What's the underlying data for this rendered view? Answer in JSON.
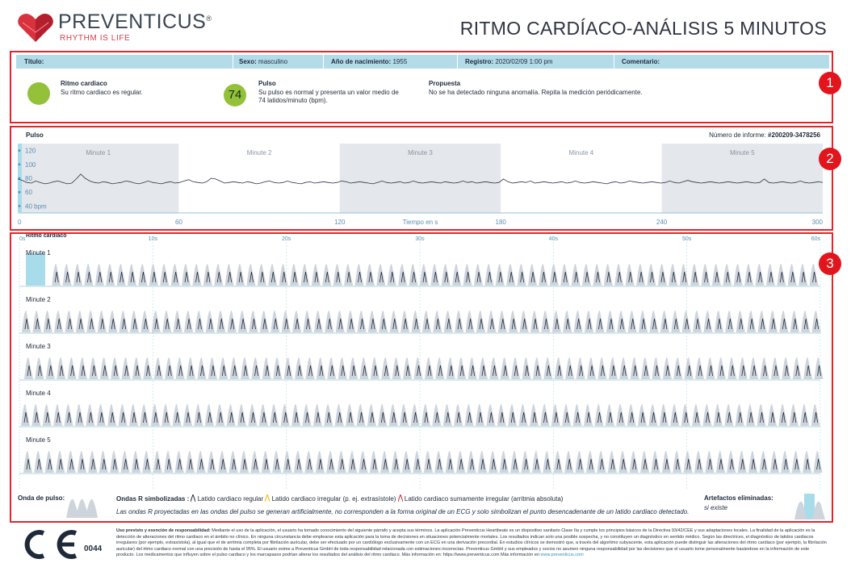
{
  "brand": {
    "name": "PREVENTICUS",
    "registered": "®",
    "slogan": "RHYTHM IS LIFE"
  },
  "page_title": "RITMO CARDÍACO-ANÁLISIS 5 MINUTOS",
  "markers": [
    "1",
    "2",
    "3"
  ],
  "info_bar": {
    "titulo_label": "Título:",
    "sexo_label": "Sexo:",
    "sexo_value": "masculino",
    "nacimiento_label": "Año de nacimiento:",
    "nacimiento_value": "1955",
    "registro_label": "Registro:",
    "registro_value": "2020/02/09 1:00 pm",
    "comentario_label": "Comentario:"
  },
  "summary": {
    "rhythm_title": "Ritmo cardiaco",
    "rhythm_text": "Su ritmo cardiaco es regular.",
    "pulse_value": "74",
    "pulse_title": "Pulso",
    "pulse_text_1": "Su pulso es normal y presenta un valor medio de",
    "pulse_text_2": "74 latidos/minuto (bpm).",
    "proposal_title": "Propuesta",
    "proposal_text": "No se ha detectado ninguna anomalía. Repita la medición periódicamente.",
    "status_color": "#93c13a"
  },
  "pulse_section": {
    "label": "Pulso",
    "report_label": "Número de informe:",
    "report_value": "#200209-3478256"
  },
  "chart_data": {
    "type": "line",
    "title": "Pulso",
    "xlabel": "Tiempo en s",
    "x_ticks": [
      0,
      60,
      120,
      180,
      240,
      300
    ],
    "y_tick_labels": [
      "120",
      "100",
      "80",
      "60",
      "40 bpm"
    ],
    "y_ticks": [
      120,
      100,
      80,
      60,
      40
    ],
    "xlim": [
      0,
      300
    ],
    "ylim": [
      30,
      130
    ],
    "minute_bands": [
      "Minute 1",
      "Minute 2",
      "Minute 3",
      "Minute 4",
      "Minute 5"
    ],
    "series": [
      {
        "values": [
          79,
          77,
          74,
          73,
          76,
          74,
          72,
          73,
          75,
          76,
          74,
          72,
          73,
          79,
          86,
          80,
          76,
          74,
          73,
          75,
          74,
          72,
          73,
          74,
          76,
          75,
          73,
          72,
          74,
          76,
          74,
          73,
          72,
          74,
          75,
          73,
          74,
          76,
          78,
          75,
          74,
          73,
          75,
          80,
          79,
          76,
          73,
          74,
          75,
          74,
          73,
          75,
          74,
          72,
          73,
          75,
          76,
          74,
          73,
          74,
          76,
          74,
          73,
          72,
          74,
          75,
          73,
          74,
          75,
          74,
          73,
          74,
          76,
          75,
          73,
          74,
          75,
          74,
          73,
          72,
          74,
          76,
          74,
          73,
          74,
          75,
          73,
          74,
          76,
          74,
          73,
          74,
          75,
          74,
          73,
          75,
          74,
          73,
          74,
          76,
          74,
          75,
          73,
          74,
          75,
          74,
          73,
          74,
          79,
          75,
          73,
          74,
          75,
          74,
          76,
          73,
          74,
          75,
          74,
          73,
          74,
          75,
          73,
          74,
          76,
          74,
          73,
          74,
          75,
          74,
          73,
          72,
          74,
          75,
          73,
          74,
          76,
          75,
          74,
          73,
          74,
          75,
          74,
          73,
          74,
          76,
          74,
          73,
          75,
          77,
          75,
          74,
          73,
          74,
          75,
          74,
          73,
          74,
          75,
          74,
          73,
          74,
          75,
          74,
          73,
          74,
          79,
          74,
          73,
          74,
          75,
          74,
          73,
          74,
          76,
          74,
          73,
          74,
          75,
          74
        ]
      }
    ]
  },
  "rhythm_section": {
    "label": "Ritmo cardiaco",
    "time_ticks": [
      "0s",
      "10s",
      "20s",
      "30s",
      "40s",
      "50s",
      "60s"
    ],
    "rows": [
      "Minute 1",
      "Minute 2",
      "Minute 3",
      "Minute 4",
      "Minute 5"
    ],
    "beats_per_row": 74
  },
  "legend": {
    "pulse_wave_label": "Onda de pulso:",
    "r_waves_label": "Ondas R simbolizadas :",
    "regular": "Latido cardiaco regular",
    "irregular": "Latido cardiaco irregular (p. ej. extrasístole)",
    "very_irregular": "Latido cardiaco sumamente irregular (arritmia absoluta)",
    "note": "Las ondas R proyectadas en las ondas del pulso se generan artificialmente, no corresponden a la forma original de un ECG y solo simbolizan el punto desencadenante de un latido cardiaco detectado.",
    "artifacts_label": "Artefactos eliminadas:",
    "artifacts_note": "si existe",
    "regular_color": "#1e2a3a",
    "irregular_color": "#f0b400",
    "very_irregular_color": "#e2252b"
  },
  "footer": {
    "ce_code": "0044",
    "disclaimer_title": "Uso previsto y exención de responsabilidad:",
    "disclaimer_body": "Mediante el uso de la aplicación, el usuario ha tomado conocimiento del siguiente párrafo y acepta sus términos. La aplicación Preventicus Heartbeats es un dispositivo sanitario Clase IIa y cumple los principios básicos de la Directiva 93/42/CEE y sus adaptaciones locales. La finalidad de la aplicación es la detección de alteraciones del ritmo cardiaco en el ámbito no clínico. En ninguna circunstancia debe emplearse esta aplicación para la toma de decisiones en situaciones potencialmente mortales. Los resultados indican solo una posible sospecha, y no constituyen un diagnóstico en sentido médico. Según las directrices, el diagnóstico de latidos cardiacos irregulares (por ejemplo, extrasístola), al igual que el de arritmia completa por fibrilación auricular, debe ser efectuado por un cardiólogo exclusivamente con un ECG en una derivación precordial. En estudios clínicos se demostró que, a través del algoritmo subyacente, esta aplicación puede distinguir las alteraciones del ritmo cardiaco (por ejemplo, la fibrilación auricular) del ritmo cardiaco normal con una precisión de hasta el 95%. El usuario exime a Preventicus GmbH de toda responsabilidad relacionada con estimaciones incorrectas. Preventicus GmbH y sus empleados y socios no asumen ninguna responsabilidad por las decisiones que el usuario tome personalmente basándose en la información de este producto. Los medicamentos que influyen sobre el pulso cardiaco y los marcapasos podrían alterar los resultados del análisis del ritmo cardiaco. Más información en: https://www.preventicus.com Más información en",
    "link": "www.preventicus.com"
  }
}
